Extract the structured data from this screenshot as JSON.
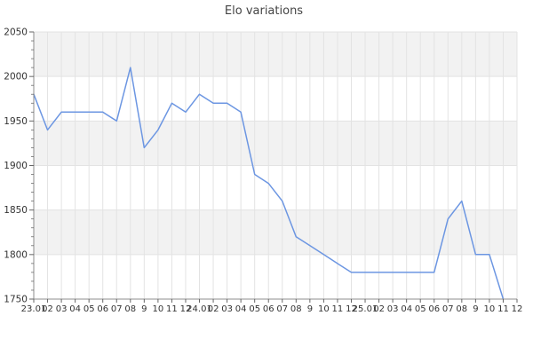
{
  "title": "Elo variations",
  "chart_data": {
    "type": "line",
    "title": "Elo variations",
    "xlabel": "",
    "ylabel": "",
    "legend": "none",
    "grid": "vertical gridline per month; horizontal line every 50; alternating gray bands per 50",
    "ylim": [
      1750,
      2050
    ],
    "y_ticks": [
      1750,
      1800,
      1850,
      1900,
      1950,
      2000,
      2050
    ],
    "y_minor_step": 10,
    "categories": [
      "23.01",
      "02",
      "03",
      "04",
      "05",
      "06",
      "07",
      "08",
      "9",
      "10",
      "11",
      "12",
      "24.01",
      "02",
      "03",
      "04",
      "05",
      "06",
      "07",
      "08",
      "9",
      "10",
      "11",
      "12",
      "25.01",
      "02",
      "03",
      "04",
      "05",
      "06",
      "07",
      "08",
      "9",
      "10",
      "11",
      "12"
    ],
    "series": [
      {
        "name": "Elo",
        "values": [
          1980,
          1940,
          1960,
          1960,
          1960,
          1960,
          1950,
          2010,
          1920,
          1940,
          1970,
          1960,
          1980,
          1970,
          1970,
          1960,
          1890,
          1880,
          1860,
          1820,
          1810,
          1800,
          1790,
          1780,
          1780,
          1780,
          1780,
          1780,
          1780,
          1780,
          1840,
          1860,
          1800,
          1800,
          1750
        ]
      }
    ]
  },
  "colors": {
    "line": "#6c96e2",
    "band": "#f2f2f2",
    "gridline": "#e3e3e3",
    "axis": "#8c8c8c",
    "tick": "#666666",
    "label_text": "#333333",
    "title_text": "#444444",
    "background": "#ffffff"
  }
}
